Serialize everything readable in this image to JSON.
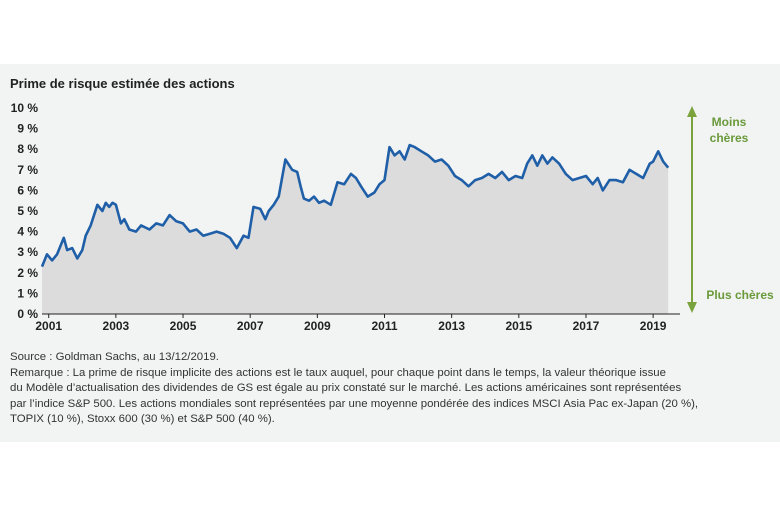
{
  "chart_data": {
    "type": "area",
    "title": "Prime de risque estimée des actions",
    "xlabel": "",
    "ylabel": "",
    "ylim": [
      0,
      10
    ],
    "xlim": [
      2000.8,
      2019.8
    ],
    "y_ticks": [
      "0 %",
      "1 %",
      "2 %",
      "3 %",
      "4 %",
      "5 %",
      "6 %",
      "7 %",
      "8 %",
      "9 %",
      "10 %"
    ],
    "x_ticks": [
      "2001",
      "2003",
      "2005",
      "2007",
      "2009",
      "2011",
      "2013",
      "2015",
      "2017",
      "2019"
    ],
    "grid": false,
    "colors": {
      "line": "#1f5fa8",
      "fill": "#dcdcdc",
      "arrow": "#7aa33e",
      "background": "#f2f3f3"
    },
    "annotations": {
      "top": [
        "Moins",
        "chères"
      ],
      "bottom": "Plus chères"
    },
    "series": [
      {
        "x": [
          2000.8,
          2000.95,
          2001.1,
          2001.25,
          2001.45,
          2001.55,
          2001.7,
          2001.85,
          2002.0,
          2002.1,
          2002.25,
          2002.45,
          2002.6,
          2002.7,
          2002.8,
          2002.9,
          2003.0,
          2003.15,
          2003.25,
          2003.4,
          2003.6,
          2003.75,
          2004.0,
          2004.2,
          2004.4,
          2004.6,
          2004.8,
          2005.0,
          2005.2,
          2005.4,
          2005.6,
          2005.8,
          2006.0,
          2006.2,
          2006.4,
          2006.6,
          2006.8,
          2006.95,
          2007.1,
          2007.3,
          2007.45,
          2007.55,
          2007.7,
          2007.85,
          2008.05,
          2008.25,
          2008.4,
          2008.5,
          2008.6,
          2008.75,
          2008.9,
          2009.05,
          2009.2,
          2009.4,
          2009.6,
          2009.8,
          2010.0,
          2010.15,
          2010.3,
          2010.5,
          2010.7,
          2010.85,
          2011.0,
          2011.15,
          2011.3,
          2011.45,
          2011.6,
          2011.75,
          2011.9,
          2012.1,
          2012.3,
          2012.5,
          2012.7,
          2012.9,
          2013.1,
          2013.3,
          2013.5,
          2013.7,
          2013.9,
          2014.1,
          2014.3,
          2014.5,
          2014.7,
          2014.9,
          2015.1,
          2015.25,
          2015.4,
          2015.55,
          2015.7,
          2015.85,
          2016.0,
          2016.2,
          2016.4,
          2016.6,
          2016.8,
          2017.0,
          2017.2,
          2017.35,
          2017.5,
          2017.7,
          2017.9,
          2018.1,
          2018.3,
          2018.5,
          2018.7,
          2018.9,
          2019.0,
          2019.15,
          2019.3,
          2019.45
        ],
        "y": [
          2.3,
          2.9,
          2.6,
          2.9,
          3.7,
          3.1,
          3.2,
          2.7,
          3.1,
          3.8,
          4.3,
          5.3,
          5.0,
          5.4,
          5.2,
          5.4,
          5.3,
          4.4,
          4.6,
          4.1,
          4.0,
          4.3,
          4.1,
          4.4,
          4.3,
          4.8,
          4.5,
          4.4,
          4.0,
          4.1,
          3.8,
          3.9,
          4.0,
          3.9,
          3.7,
          3.2,
          3.8,
          3.7,
          5.2,
          5.1,
          4.6,
          5.0,
          5.3,
          5.7,
          7.5,
          7.0,
          6.9,
          6.2,
          5.6,
          5.5,
          5.7,
          5.4,
          5.5,
          5.3,
          6.4,
          6.3,
          6.8,
          6.6,
          6.2,
          5.7,
          5.9,
          6.3,
          6.5,
          8.1,
          7.7,
          7.9,
          7.5,
          8.2,
          8.1,
          7.9,
          7.7,
          7.4,
          7.5,
          7.2,
          6.7,
          6.5,
          6.2,
          6.5,
          6.6,
          6.8,
          6.6,
          6.9,
          6.5,
          6.7,
          6.6,
          7.3,
          7.7,
          7.2,
          7.7,
          7.3,
          7.6,
          7.3,
          6.8,
          6.5,
          6.6,
          6.7,
          6.3,
          6.6,
          6.0,
          6.5,
          6.5,
          6.4,
          7.0,
          6.8,
          6.6,
          7.3,
          7.4,
          7.9,
          7.4,
          7.1
        ]
      }
    ]
  },
  "notes": [
    "Source : Goldman Sachs, au 13/12/2019.",
    "Remarque : La prime de risque implicite des actions est le taux auquel, pour chaque point dans le temps, la valeur théorique issue",
    "du Modèle d’actualisation des dividendes de GS est égale au prix constaté sur le marché. Les actions américaines sont représentées",
    "par l’indice S&P 500. Les actions mondiales sont représentées par une moyenne pondérée des indices MSCI Asia Pac ex-Japan (20 %),",
    "TOPIX (10 %), Stoxx 600 (30 %) et S&P 500 (40 %)."
  ]
}
